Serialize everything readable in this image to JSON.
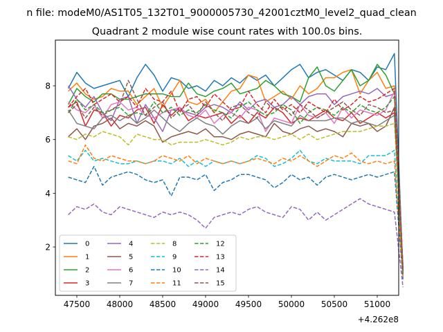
{
  "chart_data": {
    "type": "line",
    "suptitle": "n file: modeM0/AS1T05_132T01_9000005730_42001cztM0_level2_quad_clean",
    "title": "Quadrant 2 module wise count rates with 100.0s bins.",
    "xlabel": "",
    "ylabel": "",
    "x_offset_label": "+4.262e8",
    "x_offset": 426200000,
    "xlim": [
      47250,
      51250
    ],
    "ylim": [
      0.2,
      9.7
    ],
    "xticks": [
      47500,
      48000,
      48500,
      49000,
      49500,
      50000,
      50500,
      51000
    ],
    "yticks": [
      2,
      4,
      6,
      8
    ],
    "grid": false,
    "legend_position": "lower-left",
    "x_start": 47400,
    "x_step": 100,
    "series": [
      {
        "name": "0",
        "color": "#1f77b4",
        "dash": "solid",
        "values": [
          7.9,
          8.5,
          8.1,
          7.9,
          8.0,
          8.1,
          8.2,
          7.6,
          8.3,
          8.8,
          8.4,
          7.8,
          8.3,
          8.2,
          7.9,
          8.0,
          7.8,
          8.2,
          8.0,
          8.3,
          8.1,
          8.4,
          8.2,
          8.4,
          8.0,
          8.3,
          8.6,
          8.8,
          8.3,
          8.5,
          8.6,
          8.4,
          8.2,
          8.6,
          8.5,
          8.2,
          8.7,
          8.6,
          9.2,
          1.1
        ]
      },
      {
        "name": "1",
        "color": "#ff7f0e",
        "dash": "solid",
        "values": [
          7.8,
          8.1,
          7.7,
          7.5,
          7.6,
          7.9,
          7.8,
          7.8,
          7.3,
          7.6,
          7.9,
          7.2,
          7.7,
          8.2,
          7.4,
          7.3,
          7.5,
          7.0,
          7.4,
          7.8,
          7.9,
          8.4,
          8.3,
          7.4,
          7.6,
          7.8,
          7.5,
          8.0,
          7.7,
          7.9,
          8.3,
          8.3,
          8.5,
          8.6,
          7.7,
          8.2,
          8.5,
          7.9,
          8.0,
          1.2
        ]
      },
      {
        "name": "2",
        "color": "#2ca02c",
        "dash": "solid",
        "values": [
          7.3,
          7.9,
          7.6,
          7.4,
          7.7,
          7.7,
          7.5,
          7.5,
          7.6,
          7.7,
          7.7,
          7.7,
          7.6,
          7.6,
          8.1,
          7.7,
          7.6,
          7.8,
          7.9,
          8.1,
          7.7,
          7.8,
          7.9,
          8.2,
          8.0,
          7.7,
          7.6,
          7.4,
          8.3,
          8.7,
          8.0,
          7.8,
          8.2,
          8.6,
          8.0,
          8.2,
          8.8,
          8.4,
          7.7,
          1.3
        ]
      },
      {
        "name": "3",
        "color": "#d62728",
        "dash": "solid",
        "values": [
          7.2,
          7.4,
          6.5,
          7.1,
          7.0,
          6.5,
          6.9,
          6.8,
          7.1,
          7.2,
          6.6,
          7.3,
          6.9,
          7.2,
          6.7,
          6.9,
          6.8,
          6.9,
          7.0,
          6.6,
          6.9,
          6.6,
          7.0,
          6.8,
          7.2,
          7.0,
          6.6,
          6.8,
          6.7,
          6.9,
          7.1,
          6.8,
          6.7,
          7.0,
          6.6,
          6.8,
          7.0,
          6.8,
          7.0,
          1.1
        ]
      },
      {
        "name": "4",
        "color": "#9467bd",
        "dash": "solid",
        "values": [
          8.0,
          7.5,
          7.2,
          7.6,
          7.0,
          6.7,
          7.5,
          7.6,
          6.6,
          7.3,
          6.8,
          6.3,
          7.1,
          7.1,
          7.0,
          6.9,
          7.2,
          7.3,
          7.2,
          7.0,
          7.4,
          7.1,
          7.4,
          7.5,
          7.2,
          7.3,
          7.6,
          7.3,
          7.6,
          7.7,
          7.7,
          7.3,
          7.6,
          7.7,
          7.8,
          7.7,
          7.9,
          7.6,
          7.7,
          1.2
        ]
      },
      {
        "name": "5",
        "color": "#8c564b",
        "dash": "solid",
        "values": [
          6.1,
          6.4,
          6.0,
          6.5,
          6.6,
          6.8,
          6.4,
          6.6,
          6.5,
          6.7,
          6.5,
          5.9,
          6.1,
          6.2,
          6.3,
          6.2,
          6.4,
          6.1,
          6.1,
          6.0,
          6.2,
          6.3,
          6.2,
          6.1,
          6.6,
          6.3,
          6.2,
          6.4,
          6.5,
          6.3,
          6.4,
          6.3,
          6.1,
          6.6,
          6.5,
          6.6,
          6.3,
          6.5,
          7.2,
          1.0
        ]
      },
      {
        "name": "6",
        "color": "#e377c2",
        "dash": "solid",
        "values": [
          7.4,
          7.1,
          7.0,
          7.3,
          6.8,
          7.3,
          7.4,
          7.1,
          7.2,
          6.9,
          6.8,
          7.0,
          7.1,
          7.2,
          6.9,
          6.8,
          7.1,
          6.6,
          6.9,
          7.0,
          6.8,
          7.2,
          7.1,
          6.3,
          6.8,
          6.7,
          6.6,
          7.3,
          6.9,
          6.8,
          7.0,
          6.6,
          7.2,
          6.8,
          7.1,
          7.0,
          6.9,
          7.1,
          7.8,
          1.2
        ]
      },
      {
        "name": "7",
        "color": "#7f7f7f",
        "dash": "solid",
        "values": [
          7.1,
          6.6,
          6.5,
          6.4,
          6.8,
          6.9,
          6.7,
          6.9,
          6.6,
          6.8,
          7.1,
          6.8,
          6.5,
          6.3,
          6.6,
          6.8,
          6.6,
          6.5,
          6.2,
          6.5,
          6.7,
          6.6,
          6.8,
          6.4,
          6.7,
          6.6,
          6.5,
          6.9,
          6.7,
          6.7,
          6.7,
          6.8,
          6.8,
          6.6,
          6.7,
          6.6,
          6.5,
          6.7,
          6.9,
          1.1
        ]
      },
      {
        "name": "8",
        "color": "#bcbd22",
        "dash": "dashed",
        "values": [
          6.1,
          6.0,
          6.2,
          6.1,
          6.3,
          6.2,
          6.1,
          5.8,
          6.2,
          6.1,
          6.0,
          6.0,
          5.8,
          5.9,
          5.9,
          5.9,
          6.0,
          5.9,
          5.8,
          5.9,
          6.1,
          6.0,
          6.1,
          6.1,
          6.0,
          6.1,
          6.2,
          6.0,
          6.2,
          6.0,
          6.1,
          6.2,
          6.3,
          6.3,
          6.3,
          6.4,
          6.5,
          6.5,
          6.6,
          0.9
        ]
      },
      {
        "name": "9",
        "color": "#17becf",
        "dash": "dashed",
        "values": [
          5.4,
          5.2,
          5.6,
          5.2,
          5.3,
          5.2,
          5.1,
          5.1,
          5.2,
          5.1,
          5.2,
          5.2,
          5.1,
          5.3,
          5.0,
          5.2,
          5.0,
          5.2,
          5.1,
          5.2,
          5.1,
          5.2,
          5.4,
          5.3,
          5.0,
          5.1,
          5.3,
          5.6,
          5.2,
          5.1,
          5.3,
          5.2,
          5.2,
          5.2,
          5.1,
          5.4,
          5.4,
          5.4,
          5.6,
          0.9
        ]
      },
      {
        "name": "10",
        "color": "#1f77b4",
        "dash": "dashed",
        "values": [
          4.6,
          4.5,
          4.4,
          5.0,
          4.3,
          4.6,
          4.7,
          4.8,
          4.7,
          4.5,
          4.4,
          4.5,
          3.9,
          4.6,
          4.6,
          4.5,
          4.7,
          4.1,
          4.4,
          4.5,
          4.7,
          4.7,
          4.6,
          4.5,
          4.2,
          4.4,
          4.7,
          4.5,
          4.6,
          4.3,
          4.6,
          4.7,
          4.6,
          4.5,
          4.6,
          4.7,
          4.6,
          4.7,
          4.8,
          0.8
        ]
      },
      {
        "name": "11",
        "color": "#ff7f0e",
        "dash": "dashed",
        "values": [
          5.2,
          5.1,
          5.8,
          5.3,
          5.2,
          5.4,
          5.3,
          5.2,
          5.2,
          5.1,
          5.2,
          5.4,
          5.3,
          5.2,
          5.4,
          5.1,
          5.3,
          5.2,
          5.1,
          5.2,
          5.1,
          5.2,
          5.3,
          5.2,
          5.1,
          5.3,
          5.2,
          5.4,
          5.2,
          5.0,
          5.2,
          5.4,
          5.3,
          5.5,
          5.2,
          5.1,
          5.2,
          5.1,
          5.2,
          0.9
        ]
      },
      {
        "name": "12",
        "color": "#2ca02c",
        "dash": "dashed",
        "values": [
          7.0,
          7.5,
          7.1,
          7.3,
          7.0,
          7.1,
          7.2,
          6.9,
          7.0,
          6.9,
          7.4,
          7.0,
          7.2,
          6.9,
          7.1,
          7.0,
          7.3,
          7.1,
          7.0,
          6.8,
          7.2,
          7.4,
          7.1,
          6.9,
          7.0,
          7.3,
          7.1,
          6.6,
          7.0,
          7.2,
          7.1,
          6.9,
          7.2,
          7.0,
          7.3,
          7.1,
          7.0,
          7.2,
          7.6,
          1.0
        ]
      },
      {
        "name": "13",
        "color": "#d62728",
        "dash": "dashed",
        "values": [
          7.2,
          7.6,
          7.9,
          7.3,
          7.5,
          7.7,
          7.4,
          7.6,
          7.2,
          7.9,
          7.5,
          7.4,
          7.8,
          7.0,
          7.5,
          7.6,
          7.2,
          7.7,
          7.4,
          7.1,
          7.2,
          7.8,
          7.3,
          7.0,
          7.5,
          7.1,
          7.3,
          7.0,
          7.4,
          7.2,
          7.0,
          7.5,
          7.1,
          7.3,
          7.6,
          7.4,
          7.5,
          7.7,
          7.9,
          1.1
        ]
      },
      {
        "name": "14",
        "color": "#9467bd",
        "dash": "dashed",
        "values": [
          3.2,
          3.5,
          3.4,
          3.6,
          3.3,
          3.2,
          3.5,
          3.4,
          3.3,
          3.2,
          3.1,
          3.3,
          3.2,
          3.3,
          3.2,
          3.0,
          2.7,
          3.1,
          3.2,
          3.3,
          3.2,
          3.4,
          3.5,
          3.3,
          3.2,
          3.1,
          3.5,
          3.4,
          3.0,
          3.3,
          3.0,
          3.2,
          3.4,
          3.6,
          3.8,
          3.6,
          3.5,
          3.4,
          3.3,
          0.5
        ]
      },
      {
        "name": "15",
        "color": "#8c564b",
        "dash": "dashed",
        "values": [
          7.0,
          7.3,
          6.8,
          7.2,
          6.9,
          7.1,
          7.3,
          8.2,
          7.5,
          6.9,
          7.2,
          7.4,
          6.8,
          7.1,
          7.3,
          6.9,
          7.4,
          7.0,
          6.7,
          7.2,
          7.3,
          7.0,
          6.8,
          7.4,
          7.1,
          7.2,
          6.9,
          7.3,
          7.1,
          6.8,
          7.0,
          7.2,
          7.4,
          7.1,
          6.9,
          7.3,
          7.2,
          7.0,
          7.1,
          1.0
        ]
      }
    ]
  }
}
